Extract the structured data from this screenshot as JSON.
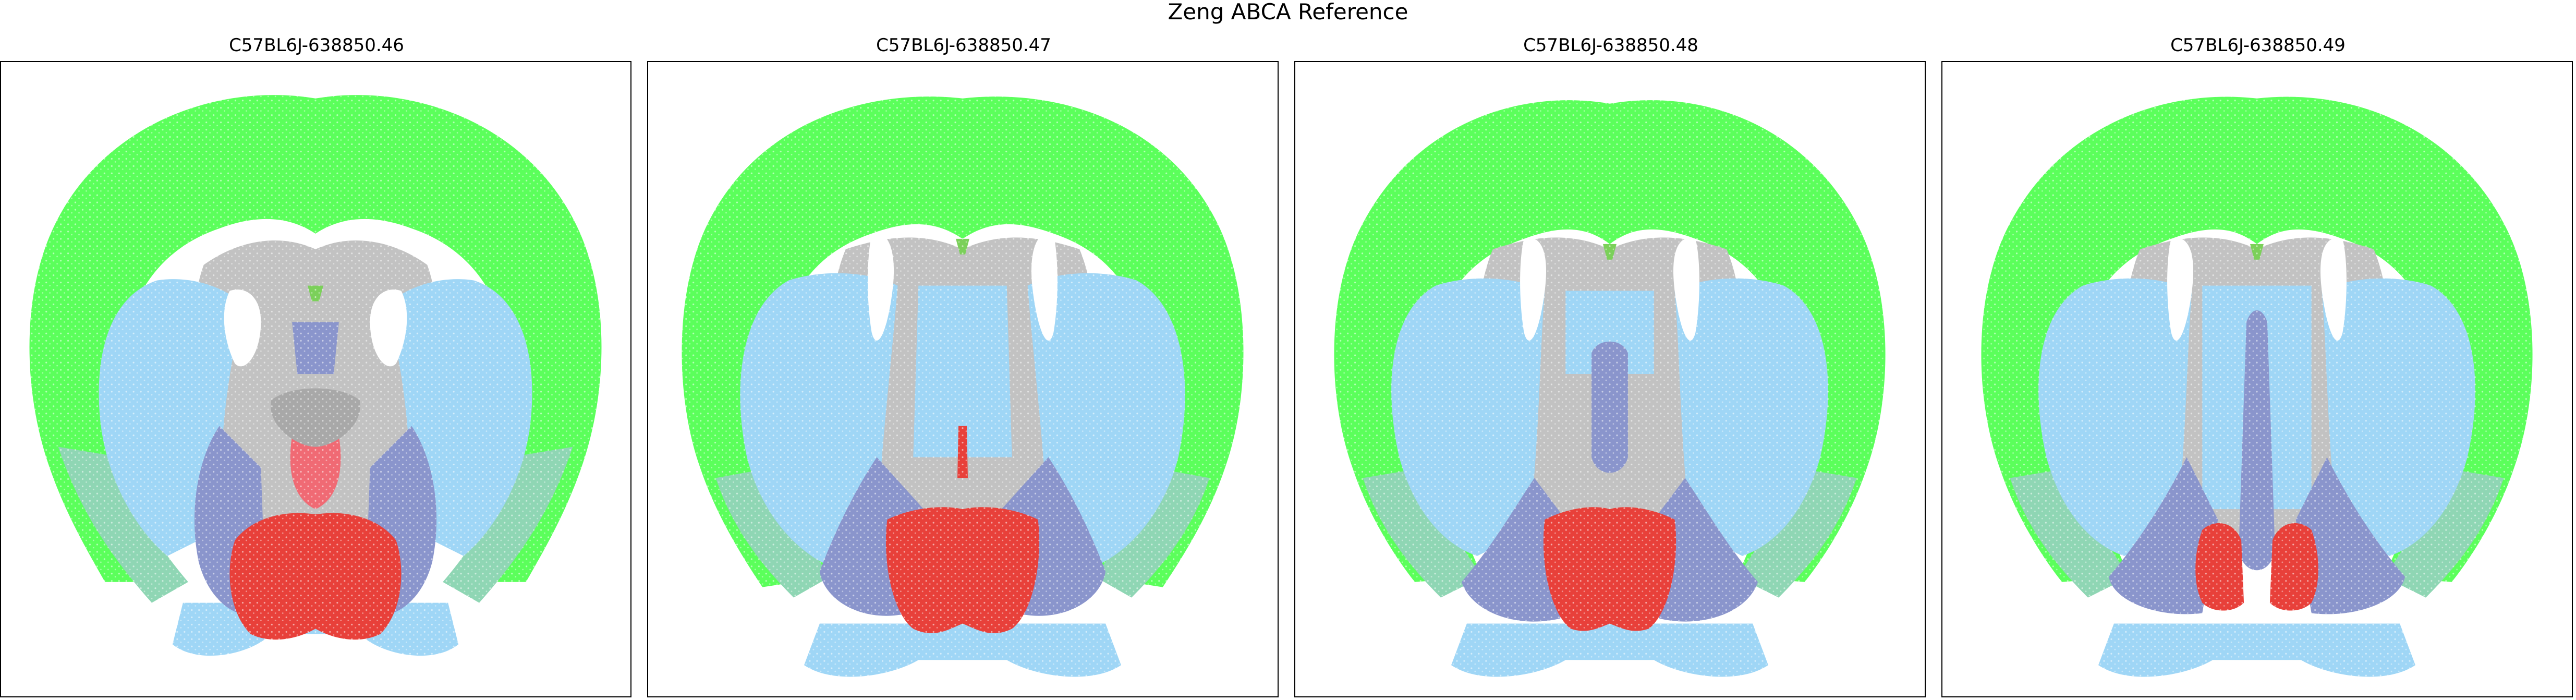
{
  "figure": {
    "title": "Zeng ABCA Reference"
  },
  "panels": [
    {
      "title": "C57BL6J-638850.46"
    },
    {
      "title": "C57BL6J-638850.47"
    },
    {
      "title": "C57BL6J-638850.48"
    },
    {
      "title": "C57BL6J-638850.49"
    }
  ],
  "colors": {
    "cortex": "#5bff5b",
    "olfactory_lateral": "#8fd6b4",
    "striatum": "#9fd6f6",
    "pallidum": "#8a95cc",
    "hypothalamus": "#e8403a",
    "thalamus_pink": "#f06a74",
    "fiber_tracts": "#c2c2c2",
    "midline_green": "#7bd05a"
  }
}
